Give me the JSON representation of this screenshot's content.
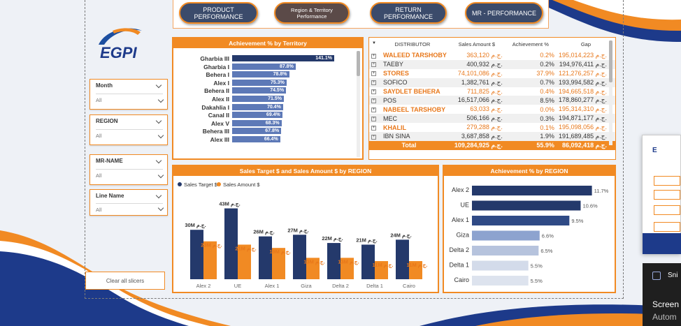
{
  "nav": {
    "product": "PRODUCT\nPERFORMANCE",
    "region": "Region & Territory\nPerformance",
    "return": "RETURN PERFORMANCE",
    "mr": "MR - PERFORMANCE"
  },
  "logo": {
    "text": "EGPI"
  },
  "slicers": [
    {
      "label": "Month",
      "value": "All"
    },
    {
      "label": "REGION",
      "value": "All"
    },
    {
      "label": "MR-NAME",
      "value": "All"
    },
    {
      "label": "Line Name",
      "value": "All"
    }
  ],
  "clear_slicers": "Clear all slicers",
  "territory_panel": {
    "title": "Achievement % by Territory",
    "rows": [
      {
        "name": "Gharbia III",
        "pct": 141.1,
        "label": "141.1%"
      },
      {
        "name": "Gharbia I",
        "pct": 87.8,
        "label": "87.8%"
      },
      {
        "name": "Behera I",
        "pct": 78.8,
        "label": "78.8%"
      },
      {
        "name": "Alex I",
        "pct": 75.3,
        "label": "75.3%"
      },
      {
        "name": "Behera II",
        "pct": 74.5,
        "label": "74.5%"
      },
      {
        "name": "Alex II",
        "pct": 71.5,
        "label": "71.5%"
      },
      {
        "name": "Dakahlia I",
        "pct": 70.4,
        "label": "70.4%"
      },
      {
        "name": "Canal II",
        "pct": 69.4,
        "label": "69.4%"
      },
      {
        "name": "Alex V",
        "pct": 68.3,
        "label": "68.3%"
      },
      {
        "name": "Behera III",
        "pct": 67.8,
        "label": "67.8%"
      },
      {
        "name": "Alex III",
        "pct": 66.4,
        "label": "66.4%"
      }
    ]
  },
  "distributor_table": {
    "headers": [
      "DISTRIBUTOR",
      "Sales Amount $",
      "Achievement %",
      "Gap"
    ],
    "rows": [
      {
        "name": "WALEED TARSHOBY",
        "sales": "363,120 ج.م.",
        "ach": "0.2%",
        "gap": "195,014,223 ج.م.",
        "hl": true
      },
      {
        "name": "TAEBY",
        "sales": "400,932 ج.م.",
        "ach": "0.2%",
        "gap": "194,976,411 ج.م.",
        "hl": false
      },
      {
        "name": "STORES",
        "sales": "74,101,086 ج.م.",
        "ach": "37.9%",
        "gap": "121,276,257 ج.م.",
        "hl": true
      },
      {
        "name": "SOFICO",
        "sales": "1,382,761 ج.م.",
        "ach": "0.7%",
        "gap": "193,994,582 ج.م.",
        "hl": false
      },
      {
        "name": "SAYDLET BEHERA",
        "sales": "711,825 ج.م.",
        "ach": "0.4%",
        "gap": "194,665,518 ج.م.",
        "hl": true
      },
      {
        "name": "POS",
        "sales": "16,517,066 ج.م.",
        "ach": "8.5%",
        "gap": "178,860,277 ج.م.",
        "hl": false
      },
      {
        "name": "NABEEL TARSHOBY",
        "sales": "63,033 ج.م.",
        "ach": "0.0%",
        "gap": "195,314,310 ج.م.",
        "hl": true
      },
      {
        "name": "MEC",
        "sales": "506,166 ج.م.",
        "ach": "0.3%",
        "gap": "194,871,177 ج.م.",
        "hl": false
      },
      {
        "name": "KHALIL",
        "sales": "279,288 ج.م.",
        "ach": "0.1%",
        "gap": "195,098,056 ج.م.",
        "hl": true
      },
      {
        "name": "IBN SINA",
        "sales": "3,687,858 ج.م.",
        "ach": "1.9%",
        "gap": "191,689,485 ج.م.",
        "hl": false
      }
    ],
    "total": {
      "label": "Total",
      "sales": "109,284,925 ج.م.",
      "ach": "55.9%",
      "gap": "86,092,418 ج.م."
    }
  },
  "chart_data": [
    {
      "type": "bar",
      "title": "Sales Target $ and Sales Amount $ by REGION",
      "categories": [
        "Alex 2",
        "UE",
        "Alex 1",
        "Giza",
        "Delta 2",
        "Delta 1",
        "Cairo"
      ],
      "series": [
        {
          "name": "Sales Target $",
          "values": [
            30,
            43,
            26,
            27,
            22,
            21,
            24
          ],
          "labels": [
            "30M ج.م.",
            "43M ج.م.",
            "26M ج.م.",
            "27M ج.م.",
            "22M ج.م.",
            "21M ج.م.",
            "24M ج.م."
          ]
        },
        {
          "name": "Sales Amount $",
          "values": [
            23,
            21,
            19,
            13,
            13,
            11,
            11
          ],
          "labels": [
            "23M ج.م.",
            "21M ج.م.",
            "19M ج.م.",
            "13M ج.م.",
            "13M ج.م.",
            "11M ج.م.",
            "11M ج.م."
          ]
        }
      ],
      "colors": [
        "#24396b",
        "#f18a23"
      ],
      "legend": "top-left"
    },
    {
      "type": "bar",
      "title": "Achievement % by REGION",
      "categories": [
        "Alex 2",
        "UE",
        "Alex 1",
        "Giza",
        "Delta 2",
        "Delta 1",
        "Cairo"
      ],
      "values": [
        11.7,
        10.6,
        9.5,
        6.6,
        6.5,
        5.5,
        5.5
      ],
      "labels": [
        "11.7%",
        "10.6%",
        "9.5%",
        "6.6%",
        "6.5%",
        "5.5%",
        "5.5%"
      ],
      "orientation": "horizontal"
    }
  ],
  "taskbar": {
    "snip_label": "Sni",
    "screen_label": "Screen",
    "auto_label": "Autom"
  }
}
